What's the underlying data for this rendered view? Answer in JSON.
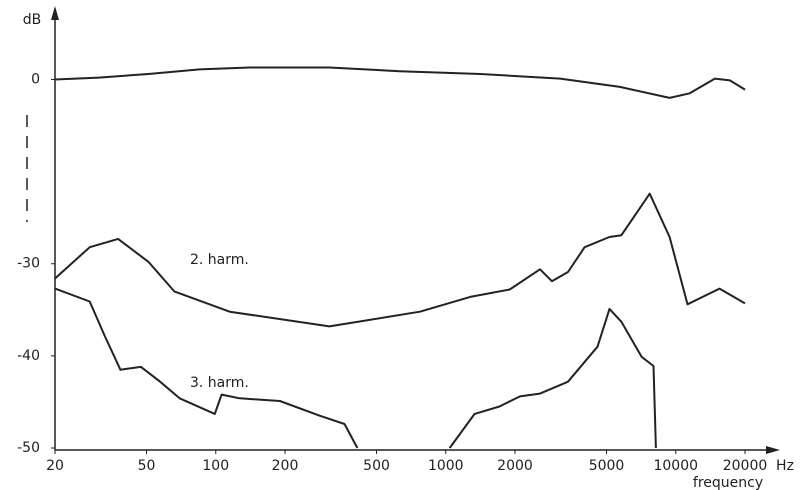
{
  "chart_data": {
    "type": "line",
    "y_axis_label": "dB",
    "x_axis_label": "Hz",
    "x_axis_title": "frequency",
    "log_x": true,
    "xlim": [
      20,
      20000
    ],
    "xticks": [
      20,
      50,
      100,
      200,
      500,
      1000,
      2000,
      5000,
      10000,
      20000
    ],
    "ylim": [
      -50,
      7
    ],
    "yticks": [
      0,
      -30,
      -40,
      -50
    ],
    "y_axis_break": [
      -20,
      -10
    ],
    "color": "#222222",
    "series": [
      {
        "x": [
          20,
          31,
          51,
          85,
          141,
          312,
          631,
          1416,
          3140,
          5715,
          9400,
          11500,
          14800,
          17200,
          20000
        ],
        "values": [
          0,
          0.2,
          0.6,
          1.1,
          1.3,
          1.3,
          0.9,
          0.6,
          0.1,
          -0.8,
          -2,
          -1.5,
          0.1,
          -0.1,
          -1.1
        ]
      },
      {
        "name": "2. harm.",
        "x": [
          20,
          28.3,
          37.6,
          51,
          66,
          115,
          312,
          772,
          1277,
          1897,
          2568,
          2895,
          3400,
          4015,
          5150,
          5800,
          7700,
          9400,
          11250,
          15500,
          20000
        ],
        "values": [
          -31.6,
          -28.2,
          -27.3,
          -29.8,
          -33,
          -35.2,
          -36.8,
          -35.2,
          -33.6,
          -32.8,
          -30.6,
          -31.9,
          -30.9,
          -28.2,
          -27.1,
          -26.9,
          -22.4,
          -27.1,
          -34.4,
          -32.7,
          -34.3
        ]
      },
      {
        "name": "3. harm.",
        "x": [
          20,
          28.3,
          33,
          38.5,
          47.3,
          57.3,
          69.6,
          99,
          106,
          127,
          190,
          284,
          363,
          413,
          null,
          1040,
          1335,
          1710,
          2100,
          2570,
          3400,
          4570,
          5150,
          5800,
          7100,
          8000,
          8200
        ],
        "values": [
          -32.7,
          -34.1,
          -37.9,
          -41.5,
          -41.2,
          -42.8,
          -44.6,
          -46.3,
          -44.2,
          -44.6,
          -44.9,
          -46.5,
          -47.4,
          -50,
          null,
          -50,
          -46.3,
          -45.5,
          -44.4,
          -44.1,
          -42.8,
          -39,
          -34.9,
          -36.3,
          -40.1,
          -41.1,
          -50
        ]
      }
    ]
  }
}
